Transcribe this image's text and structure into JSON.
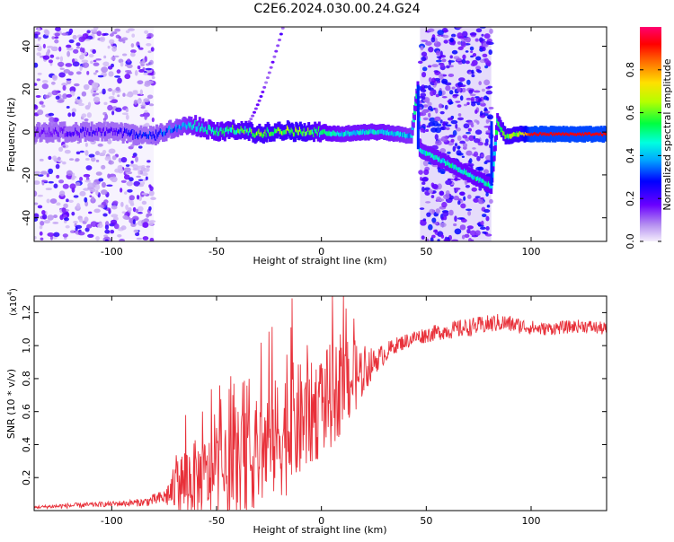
{
  "title": "C2E6.2024.030.00.24.G24",
  "colors": {
    "snr_line": "#e8313a",
    "axis": "#000000"
  },
  "chart_data": [
    {
      "type": "heatmap",
      "xlabel": "Height of straight line (km)",
      "ylabel": "Frequency (Hz)",
      "xlim": [
        -137,
        136
      ],
      "ylim": [
        -51,
        49
      ],
      "xticks": [
        -100,
        -50,
        0,
        50,
        100
      ],
      "yticks": [
        -40,
        -20,
        0,
        20,
        40
      ],
      "colorbar": {
        "label": "Normalized spectral amplitude",
        "range": [
          0.0,
          1.0
        ],
        "ticks": [
          0.0,
          0.2,
          0.4,
          0.6,
          0.8
        ],
        "colormap": "rainbow"
      },
      "noise_bands": [
        [
          -137,
          -80
        ],
        [
          47,
          81
        ]
      ],
      "trace": [
        {
          "x": -137,
          "f": 0,
          "a": 0.15
        },
        {
          "x": -115,
          "f": 0,
          "a": 0.2
        },
        {
          "x": -100,
          "f": 0,
          "a": 0.22
        },
        {
          "x": -90,
          "f": -1,
          "a": 0.25
        },
        {
          "x": -80,
          "f": -2,
          "a": 0.3
        },
        {
          "x": -70,
          "f": 2,
          "a": 0.35
        },
        {
          "x": -60,
          "f": 3,
          "a": 0.45
        },
        {
          "x": -50,
          "f": 0,
          "a": 0.5
        },
        {
          "x": -40,
          "f": 1,
          "a": 0.55
        },
        {
          "x": -30,
          "f": -1,
          "a": 0.6
        },
        {
          "x": -20,
          "f": 1,
          "a": 0.6
        },
        {
          "x": -10,
          "f": 0,
          "a": 0.65
        },
        {
          "x": 0,
          "f": 0,
          "a": 0.5
        },
        {
          "x": 10,
          "f": -1,
          "a": 0.45
        },
        {
          "x": 20,
          "f": 0,
          "a": 0.45
        },
        {
          "x": 30,
          "f": 0,
          "a": 0.45
        },
        {
          "x": 43,
          "f": -2,
          "a": 0.4
        },
        {
          "x": 46,
          "f": 20,
          "a": 0.5
        },
        {
          "x": 47,
          "f": -8,
          "a": 0.45
        },
        {
          "x": 81,
          "f": -25,
          "a": 0.5
        },
        {
          "x": 84,
          "f": 5,
          "a": 0.5
        },
        {
          "x": 88,
          "f": -2,
          "a": 0.6
        },
        {
          "x": 95,
          "f": -1,
          "a": 0.65
        },
        {
          "x": 100,
          "f": -1,
          "a": 0.92
        },
        {
          "x": 136,
          "f": -1,
          "a": 0.92
        }
      ]
    },
    {
      "type": "line",
      "xlabel": "Height of straight line (km)",
      "ylabel": "SNR (10 * v/v)",
      "y_multiplier_label": "(x10",
      "y_multiplier_exp": "4",
      "y_multiplier_close": ")",
      "xlim": [
        -137,
        136
      ],
      "ylim": [
        0,
        1.3
      ],
      "xticks": [
        -100,
        -50,
        0,
        50,
        100
      ],
      "yticks": [
        0.2,
        0.4,
        0.6,
        0.8,
        1.0,
        1.2
      ],
      "series": [
        {
          "x": [
            -137,
            -120,
            -100,
            -85,
            -75,
            -65,
            -55,
            -45,
            -35,
            -25,
            -15,
            -5,
            5,
            15,
            25,
            35,
            45,
            55,
            65,
            75,
            85,
            95,
            105,
            115,
            125,
            136
          ],
          "y": [
            0.02,
            0.03,
            0.04,
            0.05,
            0.08,
            0.18,
            0.2,
            0.22,
            0.3,
            0.4,
            0.5,
            0.58,
            0.7,
            0.8,
            0.9,
            1.0,
            1.05,
            1.08,
            1.1,
            1.12,
            1.14,
            1.12,
            1.1,
            1.11,
            1.12,
            1.1
          ],
          "spread": [
            0.01,
            0.02,
            0.02,
            0.03,
            0.06,
            0.3,
            0.3,
            0.35,
            0.4,
            0.45,
            0.5,
            0.4,
            0.4,
            0.3,
            0.1,
            0.06,
            0.06,
            0.06,
            0.07,
            0.07,
            0.07,
            0.06,
            0.05,
            0.05,
            0.05,
            0.05
          ]
        }
      ]
    }
  ]
}
